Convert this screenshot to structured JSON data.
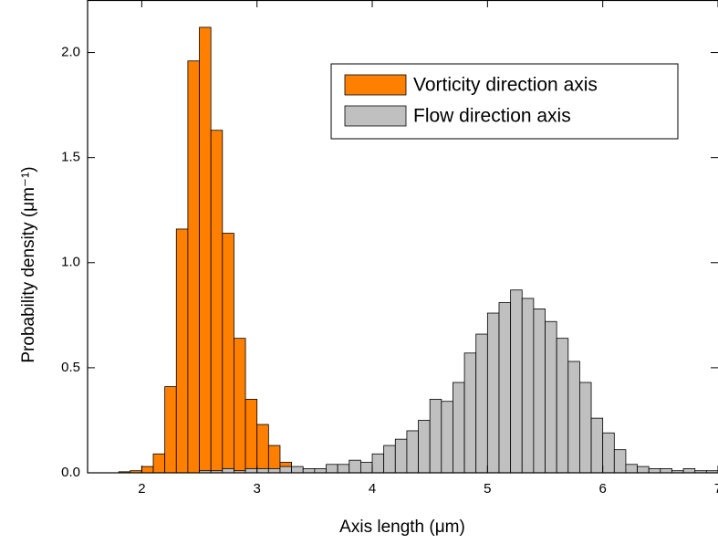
{
  "chart_data": {
    "type": "histogram",
    "xlabel": "Axis length (μm)",
    "ylabel": "Probability density (μm⁻¹)",
    "xlim": [
      1.53,
      7
    ],
    "ylim": [
      0,
      2.25
    ],
    "xticks": [
      2,
      3,
      4,
      5,
      6,
      7
    ],
    "yticks": [
      {
        "value": 0,
        "label": "0.0"
      },
      {
        "value": 0.5,
        "label": "0.5"
      },
      {
        "value": 1,
        "label": "1.0"
      },
      {
        "value": 1.5,
        "label": "1.5"
      },
      {
        "value": 2,
        "label": "2.0"
      }
    ],
    "legend": "upper right",
    "series": [
      {
        "name": "Vorticity direction axis",
        "color": "#ff7f00",
        "bins": [
          1.8,
          1.9,
          2.0,
          2.1,
          2.2,
          2.3,
          2.4,
          2.5,
          2.6,
          2.7,
          2.8,
          2.9,
          3.0,
          3.1,
          3.2,
          3.3,
          3.4,
          3.5
        ],
        "values": [
          0.005,
          0.01,
          0.03,
          0.09,
          0.41,
          1.16,
          1.96,
          2.12,
          1.63,
          1.14,
          0.64,
          0.35,
          0.23,
          0.13,
          0.05,
          0.02,
          0.01
        ]
      },
      {
        "name": "Flow direction axis",
        "color": "#c0c0c0",
        "bins": [
          2.5,
          2.6,
          2.7,
          2.8,
          2.9,
          3.0,
          3.1,
          3.2,
          3.3,
          3.4,
          3.5,
          3.6,
          3.7,
          3.8,
          3.9,
          4.0,
          4.1,
          4.2,
          4.3,
          4.4,
          4.5,
          4.6,
          4.7,
          4.8,
          4.9,
          5.0,
          5.1,
          5.2,
          5.3,
          5.4,
          5.5,
          5.6,
          5.7,
          5.8,
          5.9,
          6.0,
          6.1,
          6.2,
          6.3,
          6.4,
          6.5,
          6.6,
          6.7,
          6.8,
          6.9,
          7.0
        ],
        "values": [
          0.01,
          0.01,
          0.02,
          0.01,
          0.02,
          0.02,
          0.02,
          0.03,
          0.03,
          0.02,
          0.02,
          0.04,
          0.04,
          0.06,
          0.05,
          0.09,
          0.13,
          0.16,
          0.2,
          0.25,
          0.35,
          0.34,
          0.43,
          0.57,
          0.66,
          0.76,
          0.81,
          0.87,
          0.83,
          0.78,
          0.72,
          0.64,
          0.53,
          0.43,
          0.26,
          0.19,
          0.11,
          0.04,
          0.03,
          0.02,
          0.02,
          0.01,
          0.02,
          0.01,
          0.01
        ]
      }
    ]
  }
}
